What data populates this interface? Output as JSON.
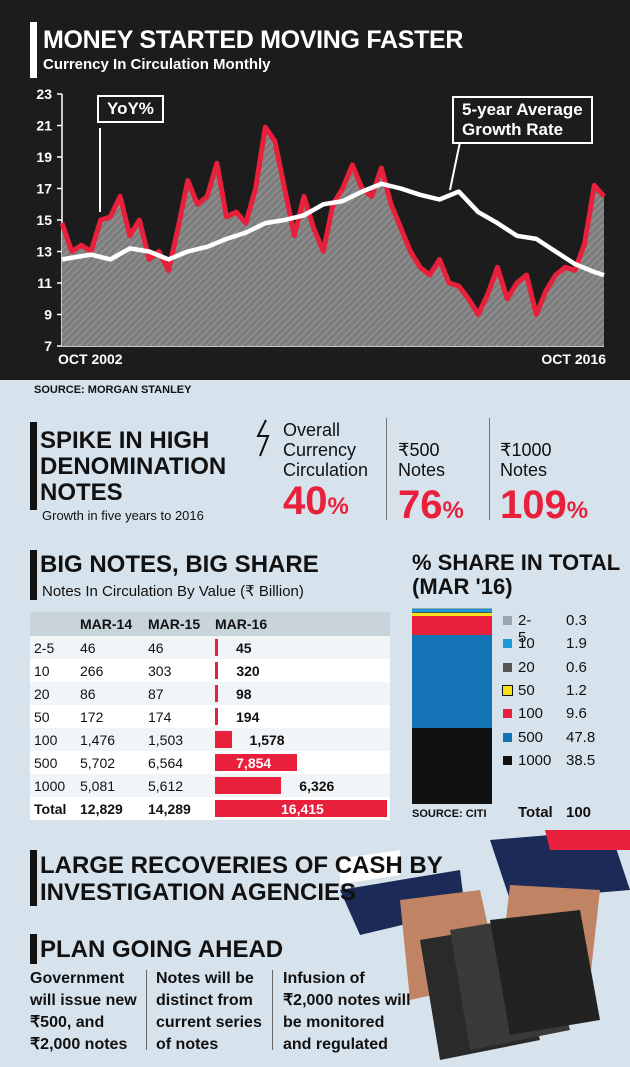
{
  "top_chart": {
    "title": "MONEY STARTED MOVING FASTER",
    "subtitle": "Currency In Circulation Monthly",
    "callout_yoy": "YoY%",
    "callout_avg": [
      "5-year Average",
      "Growth Rate"
    ],
    "source": "SOURCE: MORGAN STANLEY",
    "colors": {
      "yoy": "#e8203b",
      "avg": "#ffffff",
      "area": "#8a8a8a"
    }
  },
  "chart_data": [
    {
      "type": "line",
      "title": "MONEY STARTED MOVING FASTER",
      "subtitle": "Currency In Circulation Monthly",
      "x_labels": [
        "OCT 2002",
        "OCT 2016"
      ],
      "x_range": [
        2002.75,
        2016.75
      ],
      "ylim": [
        7,
        23
      ],
      "y_ticks": [
        7,
        9,
        11,
        13,
        15,
        17,
        19,
        21,
        23
      ],
      "series": [
        {
          "name": "YoY%",
          "x": [
            2002.75,
            2003.0,
            2003.25,
            2003.5,
            2003.75,
            2004.0,
            2004.25,
            2004.5,
            2004.75,
            2005.0,
            2005.25,
            2005.5,
            2005.75,
            2006.0,
            2006.25,
            2006.5,
            2006.75,
            2007.0,
            2007.25,
            2007.5,
            2007.75,
            2008.0,
            2008.25,
            2008.5,
            2008.75,
            2009.0,
            2009.25,
            2009.5,
            2009.75,
            2010.0,
            2010.25,
            2010.5,
            2010.75,
            2011.0,
            2011.25,
            2011.5,
            2011.75,
            2012.0,
            2012.25,
            2012.5,
            2012.75,
            2013.0,
            2013.25,
            2013.5,
            2013.75,
            2014.0,
            2014.25,
            2014.5,
            2014.75,
            2015.0,
            2015.25,
            2015.5,
            2015.75,
            2016.0,
            2016.25,
            2016.5,
            2016.75
          ],
          "values": [
            14.8,
            13.0,
            13.4,
            13.0,
            15.0,
            15.2,
            16.5,
            14.0,
            15.0,
            12.5,
            13.0,
            11.8,
            14.5,
            17.5,
            16.0,
            16.5,
            18.6,
            15.2,
            15.5,
            14.8,
            17.0,
            20.9,
            20.0,
            17.0,
            14.0,
            16.5,
            14.5,
            13.0,
            16.0,
            17.0,
            18.5,
            17.0,
            16.5,
            18.3,
            16.0,
            14.5,
            13.0,
            12.0,
            11.5,
            12.5,
            11.0,
            10.8,
            10.0,
            9.0,
            10.3,
            12.0,
            10.0,
            11.0,
            11.5,
            9.0,
            10.5,
            11.5,
            12.0,
            11.8,
            13.5,
            17.2,
            16.5
          ]
        },
        {
          "name": "5-year Average Growth Rate",
          "x": [
            2002.75,
            2003.5,
            2004.0,
            2004.5,
            2005.0,
            2005.5,
            2006.0,
            2006.5,
            2007.0,
            2007.5,
            2008.0,
            2008.5,
            2009.0,
            2009.5,
            2010.0,
            2010.5,
            2011.0,
            2011.5,
            2012.0,
            2012.5,
            2013.0,
            2013.5,
            2014.0,
            2014.5,
            2015.0,
            2015.5,
            2016.0,
            2016.5,
            2016.75
          ],
          "values": [
            12.5,
            12.8,
            12.5,
            13.2,
            13.0,
            12.5,
            13.0,
            13.3,
            13.8,
            14.2,
            14.8,
            15.0,
            15.3,
            16.0,
            16.2,
            16.8,
            17.3,
            17.0,
            16.6,
            16.3,
            16.8,
            15.5,
            14.8,
            14.0,
            13.8,
            13.0,
            12.2,
            11.7,
            11.5
          ]
        }
      ]
    },
    {
      "type": "table",
      "title": "BIG NOTES, BIG SHARE",
      "subtitle": "Notes In Circulation By Value (₹ Billion)",
      "columns": [
        "",
        "MAR-14",
        "MAR-15",
        "MAR-16"
      ],
      "rows": [
        {
          "label": "2-5",
          "mar14": "46",
          "mar15": "46",
          "mar16": "45",
          "v16": 45
        },
        {
          "label": "10",
          "mar14": "266",
          "mar15": "303",
          "mar16": "320",
          "v16": 320
        },
        {
          "label": "20",
          "mar14": "86",
          "mar15": "87",
          "mar16": "98",
          "v16": 98
        },
        {
          "label": "50",
          "mar14": "172",
          "mar15": "174",
          "mar16": "194",
          "v16": 194
        },
        {
          "label": "100",
          "mar14": "1,476",
          "mar15": "1,503",
          "mar16": "1,578",
          "v16": 1578
        },
        {
          "label": "500",
          "mar14": "5,702",
          "mar15": "6,564",
          "mar16": "7,854",
          "v16": 7854
        },
        {
          "label": "1000",
          "mar14": "5,081",
          "mar15": "5,612",
          "mar16": "6,326",
          "v16": 6326
        },
        {
          "label": "Total",
          "mar14": "12,829",
          "mar15": "14,289",
          "mar16": "16,415",
          "v16": 16415
        }
      ]
    },
    {
      "type": "bar",
      "title": "% SHARE IN TOTAL (MAR '16)",
      "stacked": true,
      "categories": [
        "2-5",
        "10",
        "20",
        "50",
        "100",
        "500",
        "1000"
      ],
      "values": [
        0.3,
        1.9,
        0.6,
        1.2,
        9.6,
        47.8,
        38.5
      ],
      "labels": [
        "0.3",
        "1.9",
        "0.6",
        "1.2",
        "9.6",
        "47.8",
        "38.5"
      ],
      "colors": [
        "#9aa5ad",
        "#1a9bd7",
        "#555555",
        "#f5e11a",
        "#e8203b",
        "#1473b5",
        "#111111"
      ],
      "total_label": "Total",
      "total_value": "100",
      "source": "SOURCE: CITI"
    }
  ],
  "spike": {
    "title": [
      "SPIKE IN HIGH",
      "DENOMINATION",
      "NOTES"
    ],
    "subtitle": "Growth in five years to 2016",
    "stats": [
      {
        "label": [
          "Overall",
          "Currency",
          "Circulation"
        ],
        "value": "40",
        "unit": "%"
      },
      {
        "label": [
          "₹500",
          "Notes"
        ],
        "value": "76",
        "unit": "%"
      },
      {
        "label": [
          "₹1000",
          "Notes"
        ],
        "value": "109",
        "unit": "%"
      }
    ]
  },
  "recoveries": [
    "LARGE RECOVERIES OF CASH BY",
    "INVESTIGATION AGENCIES"
  ],
  "plan": {
    "title": "PLAN GOING AHEAD",
    "cols": [
      [
        "Government",
        "will issue new",
        "₹500, and",
        "₹2,000 notes"
      ],
      [
        "Notes will be",
        "distinct from",
        "current series",
        "of notes"
      ],
      [
        "Infusion of",
        "₹2,000 notes will",
        "be monitored",
        "and regulated"
      ]
    ]
  }
}
